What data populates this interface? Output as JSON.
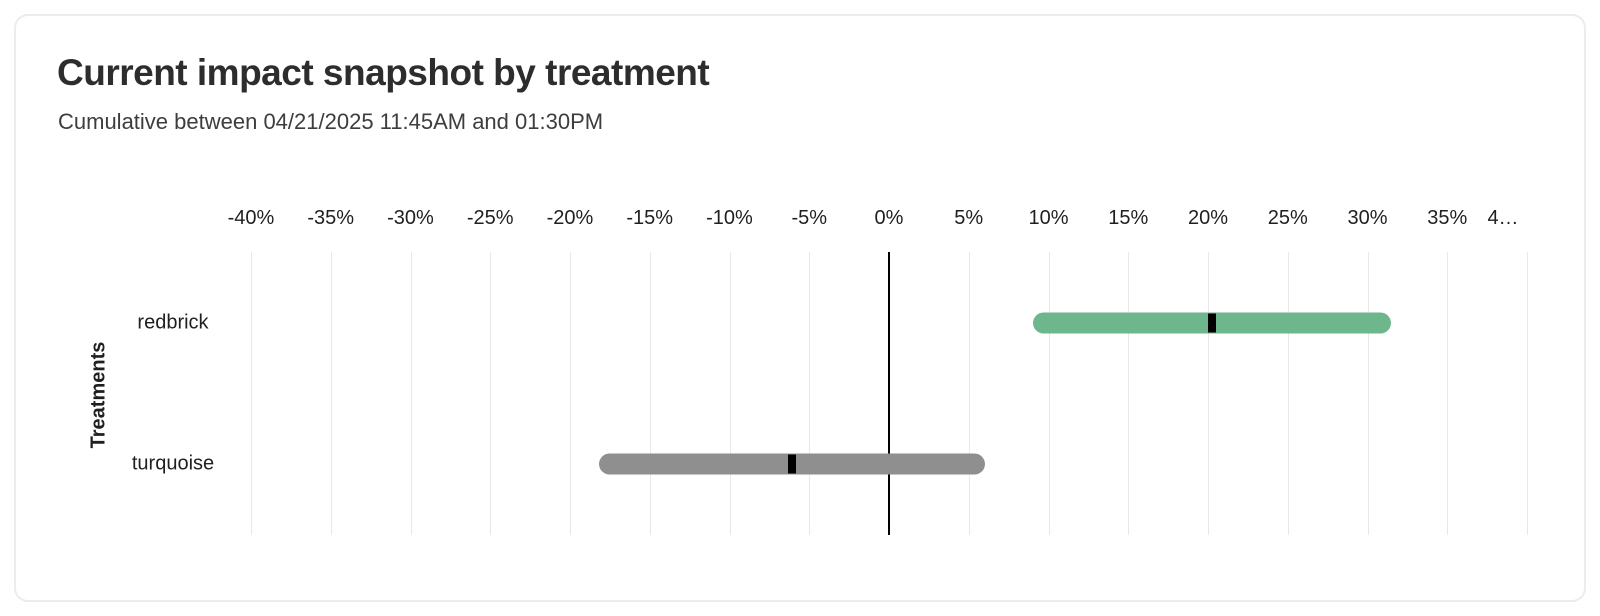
{
  "chart_data": {
    "type": "bar",
    "subtype": "horizontal-range-interval",
    "title": "Current impact snapshot by treatment",
    "subtitle": "Cumulative between 04/21/2025 11:45AM and 01:30PM",
    "xlabel": "",
    "ylabel": "Treatments",
    "x_unit": "%",
    "xlim": [
      -40,
      40
    ],
    "grid": "vertical-on",
    "zero_line": true,
    "legend": "none",
    "x_ticks": [
      {
        "value": -40,
        "label": "-40%"
      },
      {
        "value": -35,
        "label": "-35%"
      },
      {
        "value": -30,
        "label": "-30%"
      },
      {
        "value": -25,
        "label": "-25%"
      },
      {
        "value": -20,
        "label": "-20%"
      },
      {
        "value": -15,
        "label": "-15%"
      },
      {
        "value": -10,
        "label": "-10%"
      },
      {
        "value": -5,
        "label": "-5%"
      },
      {
        "value": 0,
        "label": "0%"
      },
      {
        "value": 5,
        "label": "5%"
      },
      {
        "value": 10,
        "label": "10%"
      },
      {
        "value": 15,
        "label": "15%"
      },
      {
        "value": 20,
        "label": "20%"
      },
      {
        "value": 25,
        "label": "25%"
      },
      {
        "value": 30,
        "label": "30%"
      },
      {
        "value": 35,
        "label": "35%"
      },
      {
        "value": 40,
        "label": "4…",
        "dx": -24
      }
    ],
    "rows": [
      {
        "name": "redbrick",
        "lower": 9.0,
        "upper": 31.5,
        "estimate": 20.25,
        "bar_color": "#6eb68c",
        "marker_color": "#000000"
      },
      {
        "name": "turquoise",
        "lower": -18.2,
        "upper": 6.0,
        "estimate": -6.1,
        "bar_color": "#8f8f8f",
        "marker_color": "#000000"
      }
    ],
    "colors": {
      "grid": "#e8e8e8",
      "zero_line": "#000000",
      "title_text": "#2d2d2d",
      "axis_text": "#1f1f1f"
    }
  }
}
